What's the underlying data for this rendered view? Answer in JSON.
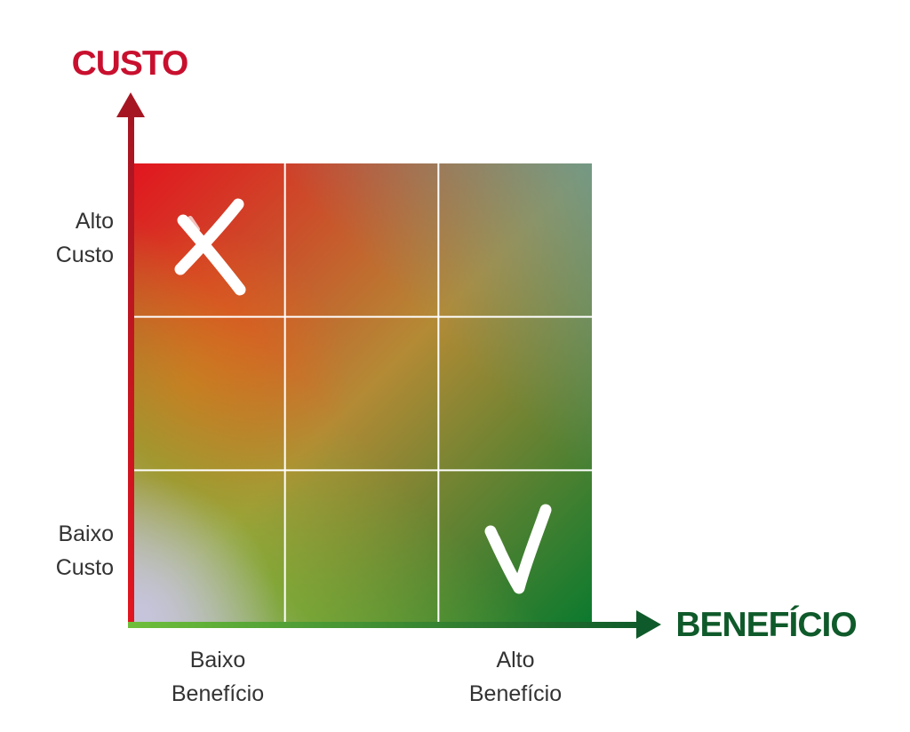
{
  "colors": {
    "cost": "#c8102e",
    "benefit": "#0f5a2a",
    "high_cost_low_benefit": "#e2151f",
    "low_cost_high_benefit": "#0b7a2e",
    "low_cost_low_benefit": "#c7c4da",
    "grid_line": "#ffffff"
  },
  "y_axis": {
    "title": "CUSTO",
    "ticks": [
      {
        "line1": "Alto",
        "line2": "Custo"
      },
      {
        "line1": "Baixo",
        "line2": "Custo"
      }
    ]
  },
  "x_axis": {
    "title": "BENEFÍCIO",
    "ticks": [
      {
        "line1": "Baixo",
        "line2": "Benefício"
      },
      {
        "line1": "Alto",
        "line2": "Benefício"
      }
    ]
  },
  "grid": {
    "rows": 3,
    "cols": 3
  },
  "marks": [
    {
      "symbol": "X",
      "meaning": "reject",
      "row": 0,
      "col": 0
    },
    {
      "symbol": "✓",
      "meaning": "accept",
      "row": 2,
      "col": 2
    }
  ]
}
